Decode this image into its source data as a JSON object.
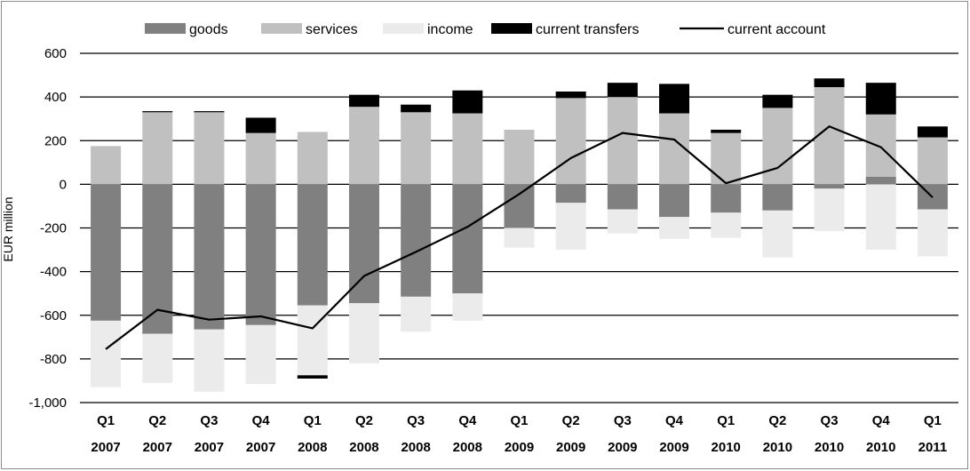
{
  "chart_data": {
    "type": "bar",
    "stacked": true,
    "ylabel": "EUR million",
    "ylim": [
      -1000,
      600
    ],
    "yticks": [
      600,
      400,
      200,
      0,
      -200,
      -400,
      -600,
      -800,
      -1000
    ],
    "ytick_labels": [
      "600",
      "400",
      "200",
      "0",
      "-200",
      "-400",
      "-600",
      "-800",
      "-1,000"
    ],
    "grid": "horizontal",
    "legend_position": "top",
    "categories": [
      [
        "Q1",
        "2007"
      ],
      [
        "Q2",
        "2007"
      ],
      [
        "Q3",
        "2007"
      ],
      [
        "Q4",
        "2007"
      ],
      [
        "Q1",
        "2008"
      ],
      [
        "Q2",
        "2008"
      ],
      [
        "Q3",
        "2008"
      ],
      [
        "Q4",
        "2008"
      ],
      [
        "Q1",
        "2009"
      ],
      [
        "Q2",
        "2009"
      ],
      [
        "Q3",
        "2009"
      ],
      [
        "Q4",
        "2009"
      ],
      [
        "Q1",
        "2010"
      ],
      [
        "Q2",
        "2010"
      ],
      [
        "Q3",
        "2010"
      ],
      [
        "Q4",
        "2010"
      ],
      [
        "Q1",
        "2011"
      ]
    ],
    "series": [
      {
        "name": "goods",
        "kind": "bar",
        "color": "#808080",
        "values": [
          -625,
          -685,
          -665,
          -645,
          -555,
          -545,
          -515,
          -500,
          -200,
          -85,
          -115,
          -150,
          -130,
          -120,
          -20,
          35,
          -115
        ]
      },
      {
        "name": "services",
        "kind": "bar",
        "color": "#c0c0c0",
        "values": [
          175,
          330,
          330,
          235,
          240,
          355,
          330,
          325,
          250,
          395,
          400,
          325,
          235,
          350,
          445,
          285,
          215
        ]
      },
      {
        "name": "income",
        "kind": "bar",
        "color": "#ebebeb",
        "values": [
          -305,
          -225,
          -285,
          -270,
          -320,
          -275,
          -160,
          -125,
          -90,
          -215,
          -110,
          -100,
          -115,
          -215,
          -195,
          -300,
          -215
        ]
      },
      {
        "name": "current transfers",
        "kind": "bar",
        "color": "#000000",
        "values": [
          0,
          5,
          5,
          70,
          -15,
          55,
          35,
          105,
          0,
          30,
          65,
          135,
          15,
          60,
          40,
          145,
          50
        ]
      },
      {
        "name": "current account",
        "kind": "line",
        "color": "#000000",
        "values": [
          -755,
          -575,
          -620,
          -605,
          -660,
          -420,
          -310,
          -195,
          -45,
          120,
          235,
          205,
          5,
          75,
          265,
          170,
          -60
        ]
      }
    ]
  }
}
